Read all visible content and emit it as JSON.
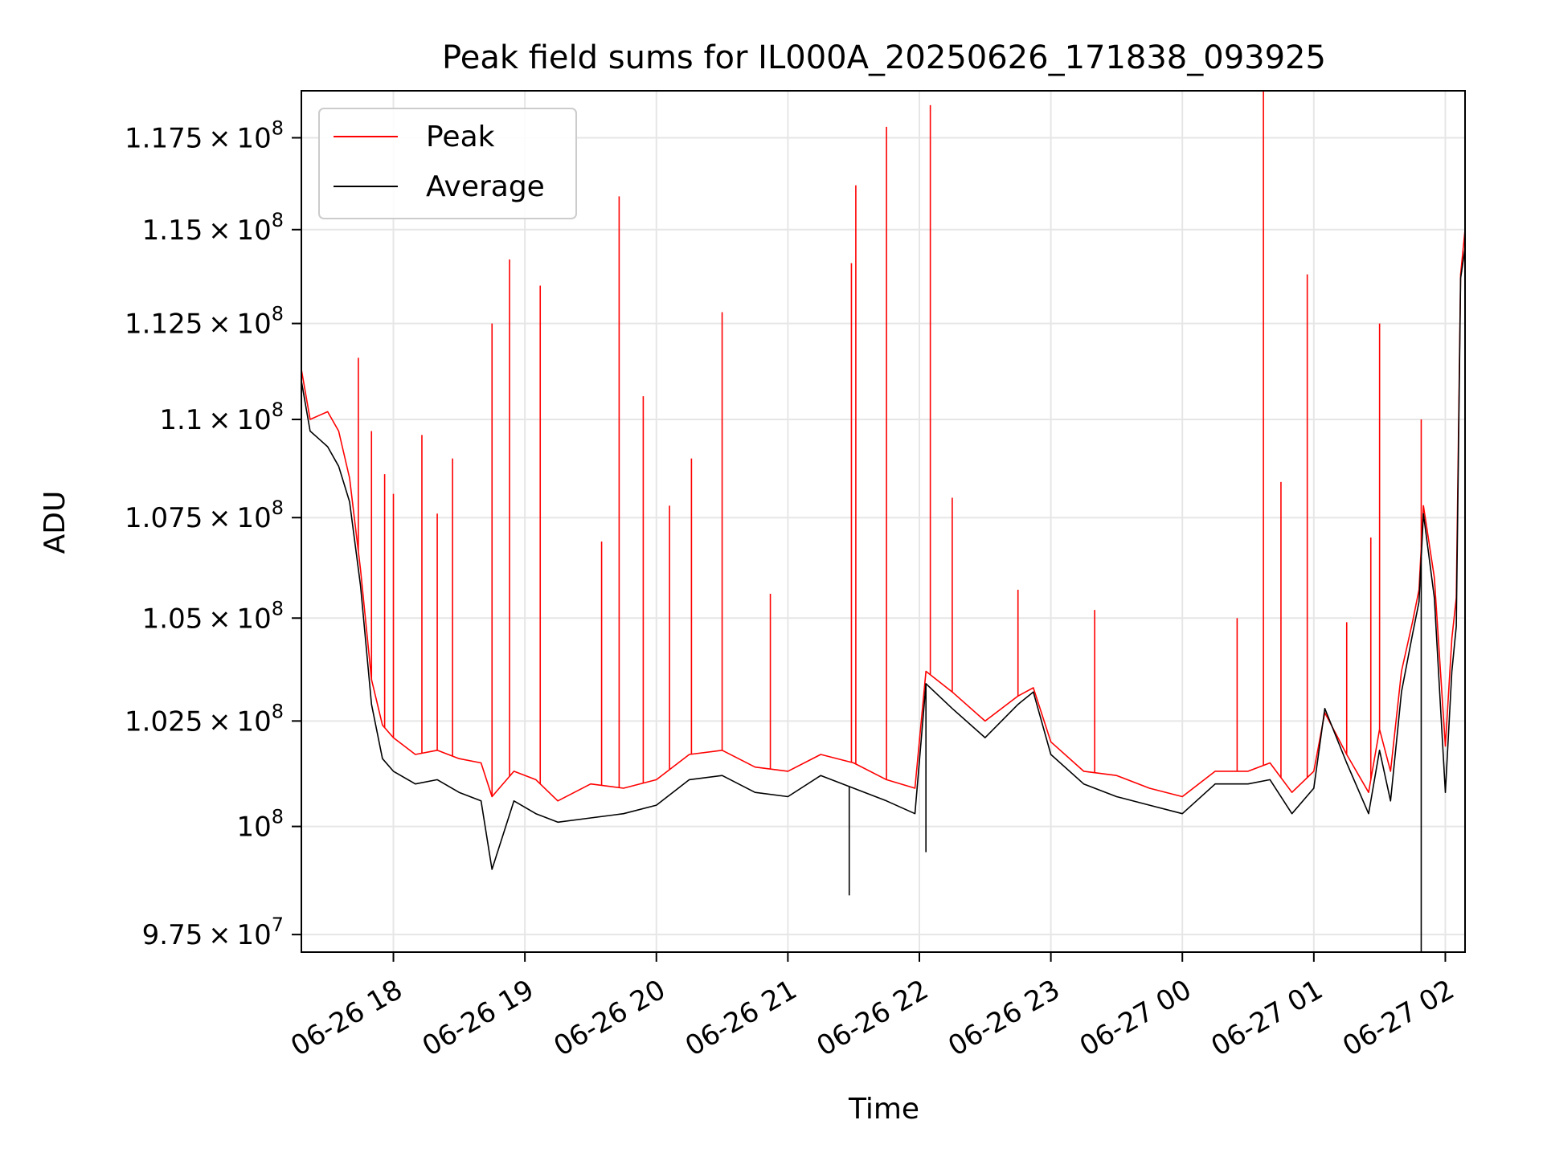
{
  "chart_data": {
    "type": "line",
    "title": "Peak field sums for IL000A_20250626_171838_093925",
    "xlabel": "Time",
    "ylabel": "ADU",
    "y_scale": "log",
    "grid": true,
    "legend_position": "upper-left",
    "xlim": [
      "2025-06-26T17:18",
      "2025-06-27T02:09"
    ],
    "ylim": [
      97100000,
      118800000
    ],
    "x_tick_values": [
      "2025-06-26T18:00",
      "2025-06-26T19:00",
      "2025-06-26T20:00",
      "2025-06-26T21:00",
      "2025-06-26T22:00",
      "2025-06-26T23:00",
      "2025-06-27T00:00",
      "2025-06-27T01:00",
      "2025-06-27T02:00"
    ],
    "x_tick_labels": [
      "06-26 18",
      "06-26 19",
      "06-26 20",
      "06-26 21",
      "06-26 22",
      "06-26 23",
      "06-27 00",
      "06-27 01",
      "06-27 02"
    ],
    "y_ticks": [
      {
        "value": 97500000,
        "mant": "9.75",
        "exp": "7"
      },
      {
        "value": 100000000,
        "mant": "",
        "exp": "8"
      },
      {
        "value": 102500000,
        "mant": "1.025",
        "exp": "8"
      },
      {
        "value": 105000000,
        "mant": "1.05",
        "exp": "8"
      },
      {
        "value": 107500000,
        "mant": "1.075",
        "exp": "8"
      },
      {
        "value": 110000000,
        "mant": "1.1",
        "exp": "8"
      },
      {
        "value": 112500000,
        "mant": "1.125",
        "exp": "8"
      },
      {
        "value": 115000000,
        "mant": "1.15",
        "exp": "8"
      },
      {
        "value": 117500000,
        "mant": "1.175",
        "exp": "8"
      }
    ],
    "series": [
      {
        "name": "Peak",
        "color": "#ff0000",
        "x": [
          "2025-06-26T17:18",
          "2025-06-26T17:22",
          "2025-06-26T17:26",
          "2025-06-26T17:30",
          "2025-06-26T17:35",
          "2025-06-26T17:40",
          "2025-06-26T17:45",
          "2025-06-26T17:50",
          "2025-06-26T17:55",
          "2025-06-26T18:00",
          "2025-06-26T18:10",
          "2025-06-26T18:20",
          "2025-06-26T18:30",
          "2025-06-26T18:40",
          "2025-06-26T18:45",
          "2025-06-26T18:55",
          "2025-06-26T19:05",
          "2025-06-26T19:15",
          "2025-06-26T19:30",
          "2025-06-26T19:45",
          "2025-06-26T20:00",
          "2025-06-26T20:15",
          "2025-06-26T20:30",
          "2025-06-26T20:45",
          "2025-06-26T21:00",
          "2025-06-26T21:15",
          "2025-06-26T21:30",
          "2025-06-26T21:45",
          "2025-06-26T21:58",
          "2025-06-26T22:03",
          "2025-06-26T22:15",
          "2025-06-26T22:30",
          "2025-06-26T22:45",
          "2025-06-26T22:52",
          "2025-06-26T23:00",
          "2025-06-26T23:15",
          "2025-06-26T23:30",
          "2025-06-26T23:45",
          "2025-06-27T00:00",
          "2025-06-27T00:15",
          "2025-06-27T00:30",
          "2025-06-27T00:40",
          "2025-06-27T00:50",
          "2025-06-27T01:00",
          "2025-06-27T01:05",
          "2025-06-27T01:15",
          "2025-06-27T01:25",
          "2025-06-27T01:30",
          "2025-06-27T01:35",
          "2025-06-27T01:40",
          "2025-06-27T01:45",
          "2025-06-27T01:48",
          "2025-06-27T01:50",
          "2025-06-27T01:55",
          "2025-06-27T02:00",
          "2025-06-27T02:03",
          "2025-06-27T02:05",
          "2025-06-27T02:07",
          "2025-06-27T02:09"
        ],
        "y": [
          111300000,
          110000000,
          110100000,
          110200000,
          109700000,
          108500000,
          106200000,
          103500000,
          102400000,
          102100000,
          101700000,
          101800000,
          101600000,
          101500000,
          100700000,
          101300000,
          101100000,
          100600000,
          101000000,
          100900000,
          101100000,
          101700000,
          101800000,
          101400000,
          101300000,
          101700000,
          101500000,
          101100000,
          100900000,
          103700000,
          103200000,
          102500000,
          103100000,
          103300000,
          102000000,
          101300000,
          101200000,
          100900000,
          100700000,
          101300000,
          101300000,
          101500000,
          100800000,
          101300000,
          102700000,
          101700000,
          100800000,
          102300000,
          101300000,
          103700000,
          104900000,
          105700000,
          107800000,
          106000000,
          101900000,
          104500000,
          105500000,
          113800000,
          115000000
        ],
        "spikes": [
          {
            "x": "2025-06-26T17:44",
            "y": 111600000
          },
          {
            "x": "2025-06-26T17:50",
            "y": 109700000
          },
          {
            "x": "2025-06-26T17:56",
            "y": 108600000
          },
          {
            "x": "2025-06-26T18:00",
            "y": 108100000
          },
          {
            "x": "2025-06-26T18:13",
            "y": 109600000
          },
          {
            "x": "2025-06-26T18:20",
            "y": 107600000
          },
          {
            "x": "2025-06-26T18:27",
            "y": 109000000
          },
          {
            "x": "2025-06-26T18:45",
            "y": 112500000
          },
          {
            "x": "2025-06-26T18:53",
            "y": 114200000
          },
          {
            "x": "2025-06-26T19:07",
            "y": 113500000
          },
          {
            "x": "2025-06-26T19:35",
            "y": 106900000
          },
          {
            "x": "2025-06-26T19:43",
            "y": 115900000
          },
          {
            "x": "2025-06-26T19:54",
            "y": 110600000
          },
          {
            "x": "2025-06-26T20:06",
            "y": 107800000
          },
          {
            "x": "2025-06-26T20:16",
            "y": 109000000
          },
          {
            "x": "2025-06-26T20:30",
            "y": 112800000
          },
          {
            "x": "2025-06-26T20:52",
            "y": 105600000
          },
          {
            "x": "2025-06-26T21:29",
            "y": 114100000
          },
          {
            "x": "2025-06-26T21:31",
            "y": 116200000
          },
          {
            "x": "2025-06-26T21:45",
            "y": 117800000
          },
          {
            "x": "2025-06-26T22:05",
            "y": 118400000
          },
          {
            "x": "2025-06-26T22:15",
            "y": 108000000
          },
          {
            "x": "2025-06-26T22:45",
            "y": 105700000
          },
          {
            "x": "2025-06-26T23:20",
            "y": 105200000
          },
          {
            "x": "2025-06-27T00:25",
            "y": 105000000
          },
          {
            "x": "2025-06-27T00:37",
            "y": 118800000
          },
          {
            "x": "2025-06-27T00:45",
            "y": 108400000
          },
          {
            "x": "2025-06-27T00:57",
            "y": 113800000
          },
          {
            "x": "2025-06-27T01:15",
            "y": 104900000
          },
          {
            "x": "2025-06-27T01:26",
            "y": 107000000
          },
          {
            "x": "2025-06-27T01:30",
            "y": 112500000
          },
          {
            "x": "2025-06-27T01:49",
            "y": 110000000
          }
        ]
      },
      {
        "name": "Average",
        "color": "#000000",
        "x": [
          "2025-06-26T17:18",
          "2025-06-26T17:22",
          "2025-06-26T17:26",
          "2025-06-26T17:30",
          "2025-06-26T17:35",
          "2025-06-26T17:40",
          "2025-06-26T17:45",
          "2025-06-26T17:50",
          "2025-06-26T17:55",
          "2025-06-26T18:00",
          "2025-06-26T18:10",
          "2025-06-26T18:20",
          "2025-06-26T18:30",
          "2025-06-26T18:40",
          "2025-06-26T18:45",
          "2025-06-26T18:55",
          "2025-06-26T19:05",
          "2025-06-26T19:15",
          "2025-06-26T19:30",
          "2025-06-26T19:45",
          "2025-06-26T20:00",
          "2025-06-26T20:15",
          "2025-06-26T20:30",
          "2025-06-26T20:45",
          "2025-06-26T21:00",
          "2025-06-26T21:15",
          "2025-06-26T21:30",
          "2025-06-26T21:45",
          "2025-06-26T21:58",
          "2025-06-26T22:03",
          "2025-06-26T22:15",
          "2025-06-26T22:30",
          "2025-06-26T22:45",
          "2025-06-26T22:52",
          "2025-06-26T23:00",
          "2025-06-26T23:15",
          "2025-06-26T23:30",
          "2025-06-26T23:45",
          "2025-06-27T00:00",
          "2025-06-27T00:15",
          "2025-06-27T00:30",
          "2025-06-27T00:40",
          "2025-06-27T00:50",
          "2025-06-27T01:00",
          "2025-06-27T01:05",
          "2025-06-27T01:15",
          "2025-06-27T01:25",
          "2025-06-27T01:30",
          "2025-06-27T01:35",
          "2025-06-27T01:40",
          "2025-06-27T01:45",
          "2025-06-27T01:48",
          "2025-06-27T01:50",
          "2025-06-27T01:55",
          "2025-06-27T02:00",
          "2025-06-27T02:03",
          "2025-06-27T02:05",
          "2025-06-27T02:07",
          "2025-06-27T02:09"
        ],
        "y": [
          111000000,
          109700000,
          109500000,
          109300000,
          108800000,
          107900000,
          105800000,
          102900000,
          101600000,
          101300000,
          101000000,
          101100000,
          100800000,
          100600000,
          99000000,
          100600000,
          100300000,
          100100000,
          100200000,
          100300000,
          100500000,
          101100000,
          101200000,
          100800000,
          100700000,
          101200000,
          100900000,
          100600000,
          100300000,
          103400000,
          102800000,
          102100000,
          102900000,
          103200000,
          101700000,
          101000000,
          100700000,
          100500000,
          100300000,
          101000000,
          101000000,
          101100000,
          100300000,
          100900000,
          102800000,
          101500000,
          100300000,
          101800000,
          100600000,
          103200000,
          104600000,
          105400000,
          107600000,
          105500000,
          100800000,
          103700000,
          104800000,
          113700000,
          114500000
        ],
        "dips": [
          {
            "x": "2025-06-26T18:45",
            "y": 99000000
          },
          {
            "x": "2025-06-26T21:28",
            "y": 98400000
          },
          {
            "x": "2025-06-26T22:03",
            "y": 99400000
          },
          {
            "x": "2025-06-27T01:49",
            "y": 97100000
          }
        ]
      }
    ]
  }
}
